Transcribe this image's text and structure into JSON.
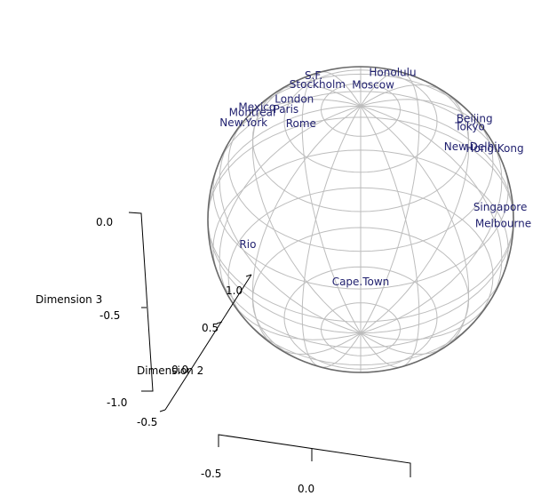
{
  "chart_data": {
    "type": "scatter",
    "title": "",
    "projection": "3d-sphere",
    "grid": true,
    "colors": {
      "labels": "#1f1f6e",
      "sphere_grid": "#bdbdbd",
      "sphere_outline": "#6a6a6a",
      "axes": "#000000"
    },
    "axes": {
      "x": {
        "label": "",
        "ticks": [
          "-0.5",
          "0.0"
        ]
      },
      "y": {
        "label": "Dimension 2",
        "ticks": [
          "-0.5",
          "0.0",
          "0.5",
          "1.0"
        ]
      },
      "z": {
        "label": "Dimension 3",
        "ticks": [
          "0.0",
          "-0.5",
          "-1.0"
        ]
      }
    },
    "points": [
      {
        "label": "S.F.",
        "lon": -30,
        "lat": 52
      },
      {
        "label": "Honolulu",
        "lon": 22,
        "lat": 56
      },
      {
        "label": "Tokyo",
        "lon": 78,
        "lat": 43
      },
      {
        "label": "Beijing",
        "lon": 64,
        "lat": 34
      },
      {
        "label": "Montreal",
        "lon": -60,
        "lat": 35
      },
      {
        "label": "New.York",
        "lon": -66,
        "lat": 33
      },
      {
        "label": "Mexico",
        "lon": -54,
        "lat": 33
      },
      {
        "label": "Stockholm",
        "lon": -18,
        "lat": 24
      },
      {
        "label": "Moscow",
        "lon": 5,
        "lat": 20
      },
      {
        "label": "London",
        "lon": -27,
        "lat": 17
      },
      {
        "label": "Paris",
        "lon": -30,
        "lat": 12
      },
      {
        "label": "Rome",
        "lon": -23,
        "lat": 1
      },
      {
        "label": "Hong.Kong",
        "lon": 66,
        "lat": 16
      },
      {
        "label": "New.Delhi",
        "lon": 46,
        "lat": 1
      },
      {
        "label": "Singapore",
        "lon": 69,
        "lat": -12
      },
      {
        "label": "Melbourne",
        "lon": 75,
        "lat": -15
      },
      {
        "label": "Rio",
        "lon": -63,
        "lat": -34
      },
      {
        "label": "Cape.Town",
        "lon": 0,
        "lat": -66
      }
    ]
  }
}
